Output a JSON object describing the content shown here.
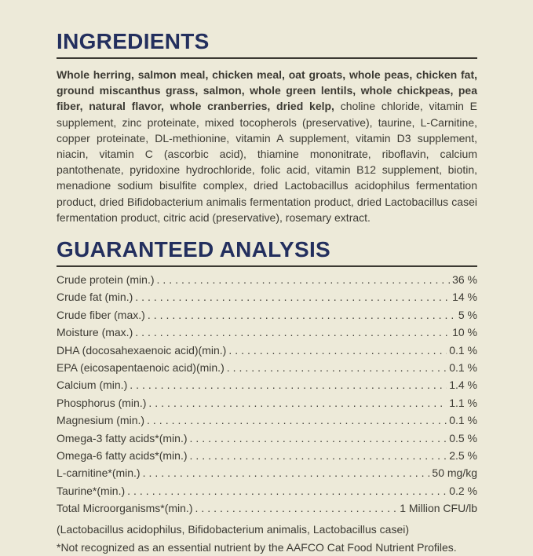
{
  "page": {
    "background_color": "#EDEAD9",
    "heading_color": "#232F5E",
    "text_color": "#3C3A33"
  },
  "ingredients": {
    "title": "INGREDIENTS",
    "primary": "Whole herring, salmon meal, chicken meal, oat groats, whole peas, chicken fat, ground miscanthus grass, salmon, whole green lentils, whole chickpeas, pea fiber, natural flavor, whole cranberries, dried kelp,",
    "secondary": "choline chloride, vitamin E supplement, zinc proteinate, mixed tocopherols (preservative), taurine, L-Carnitine, copper proteinate, DL-methionine, vitamin A supplement, vitamin D3 supplement, niacin, vitamin C (ascorbic acid), thiamine mononitrate, riboflavin, calcium pantothenate, pyridoxine hydrochloride, folic acid, vitamin B12 supplement, biotin, menadione sodium bisulfite complex, dried Lactobacillus acidophilus fermentation product, dried Bifidobacterium animalis fermentation product, dried Lactobacillus casei fermentation product, citric acid (preservative), rosemary extract."
  },
  "guaranteed_analysis": {
    "title": "GUARANTEED ANALYSIS",
    "rows": [
      {
        "label": "Crude protein (min.)",
        "value": "36 %"
      },
      {
        "label": "Crude fat (min.)",
        "value": "14 %"
      },
      {
        "label": "Crude fiber (max.)",
        "value": "5 %"
      },
      {
        "label": "Moisture (max.)",
        "value": "10 %"
      },
      {
        "label": "DHA (docosahexaenoic acid)(min.)",
        "value": "0.1 %"
      },
      {
        "label": "EPA (eicosapentaenoic acid)(min.)",
        "value": "0.1 %"
      },
      {
        "label": "Calcium (min.)",
        "value": "1.4 %"
      },
      {
        "label": "Phosphorus (min.)",
        "value": "1.1 %"
      },
      {
        "label": "Magnesium (min.)",
        "value": "0.1 %"
      },
      {
        "label": "Omega-3 fatty acids*(min.)",
        "value": "0.5 %"
      },
      {
        "label": "Omega-6 fatty acids*(min.)",
        "value": "2.5 %"
      },
      {
        "label": "L-carnitine*(min.)",
        "value": "50 mg/kg"
      },
      {
        "label": "Taurine*(min.)",
        "value": "0.2 %"
      },
      {
        "label": "Total Microorganisms*(min.)",
        "value": "1 Million CFU/lb"
      }
    ],
    "microorganism_species": "(Lactobacillus acidophilus, Bifidobacterium animalis, Lactobacillus casei)",
    "footnote": "*Not recognized as an essential nutrient by the AAFCO Cat Food Nutrient Profiles."
  }
}
